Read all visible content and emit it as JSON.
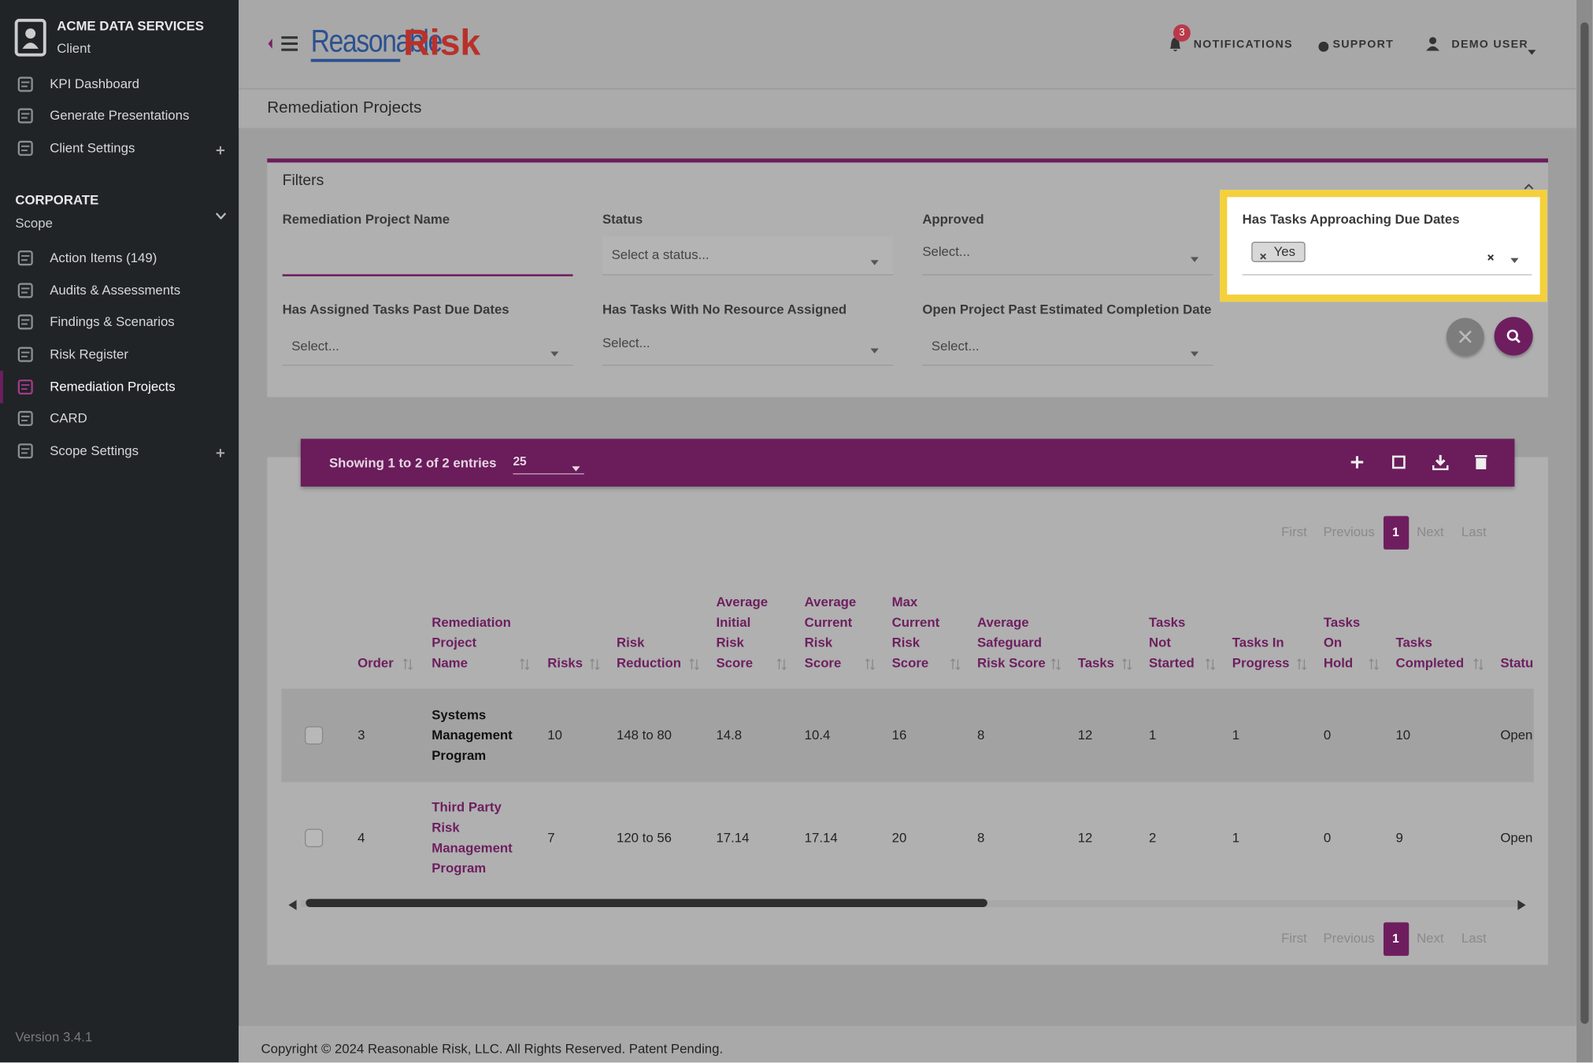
{
  "sidebar": {
    "client_name": "ACME DATA SERVICES",
    "client_role": "Client",
    "client_menu": [
      "KPI Dashboard",
      "Generate Presentations",
      "Client Settings"
    ],
    "scope_name": "CORPORATE",
    "scope_role": "Scope",
    "scope_menu": [
      "Action Items (149)",
      "Audits & Assessments",
      "Findings & Scenarios",
      "Risk Register",
      "Remediation Projects",
      "CARD",
      "Scope Settings"
    ],
    "version": "Version 3.4.1"
  },
  "header": {
    "logo_left": "Reasonable",
    "logo_right": "Risk",
    "notification_count": 3,
    "notifications": "NOTIFICATIONS",
    "support": "SUPPORT",
    "user": "DEMO USER"
  },
  "page_title": "Remediation Projects",
  "filters": {
    "title": "Filters",
    "fields": [
      {
        "label": "Remediation Project Name"
      },
      {
        "label": "Status",
        "placeholder": "Select a status..."
      },
      {
        "label": "Approved",
        "placeholder": "Select..."
      },
      {
        "label": "Has Tasks Approaching Due Dates",
        "selected": "Yes"
      },
      {
        "label": "Has Assigned Tasks Past Due Dates",
        "placeholder": "Select..."
      },
      {
        "label": "Has Tasks With No Resource Assigned",
        "placeholder": "Select..."
      },
      {
        "label": "Open Project Past Estimated Completion Date",
        "placeholder": "Select..."
      }
    ]
  },
  "table": {
    "showing": "Showing 1 to 2 of 2 entries",
    "page_size": 25,
    "pagination": [
      "First",
      "Previous",
      "1",
      "Next",
      "Last"
    ],
    "columns": [
      "Order",
      "Remediation Project Name",
      "Risks",
      "Risk Reduction",
      "Average Initial Risk Score",
      "Average Current Risk Score",
      "Max Current Risk Score",
      "Average Safeguard Risk Score",
      "Tasks",
      "Tasks Not Started",
      "Tasks In Progress",
      "Tasks On Hold",
      "Tasks Completed",
      "Status"
    ],
    "rows": [
      [
        3,
        "Systems Management Program",
        10,
        "148 to 80",
        14.8,
        10.4,
        16,
        8,
        12,
        1,
        1,
        0,
        10,
        "Open"
      ],
      [
        4,
        "Third Party Risk Management Program",
        7,
        "120 to 56",
        17.14,
        17.14,
        20,
        8,
        12,
        2,
        1,
        0,
        9,
        "Open"
      ]
    ]
  },
  "footer": "Copyright © 2024 Reasonable Risk, LLC. All Rights Reserved. Patent Pending."
}
